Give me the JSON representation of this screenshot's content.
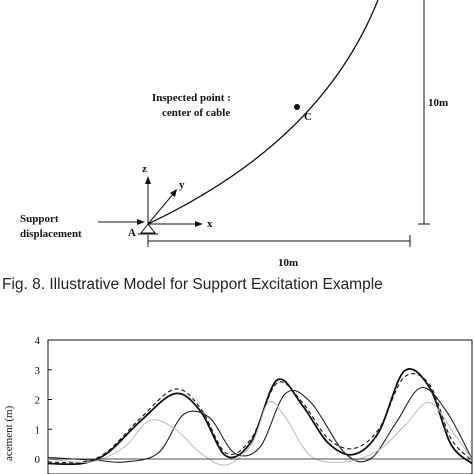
{
  "figure": {
    "label_inspected_line1": "Inspected point :",
    "label_inspected_line2": "center of cable",
    "label_point_c": "C",
    "label_point_a": "A",
    "label_support_line1": "Support",
    "label_support_line2": "displacement",
    "axis_z": "z",
    "axis_y": "y",
    "axis_x": "x",
    "dim_vertical": "10m",
    "dim_horizontal": "10m",
    "caption": "Fig. 8. Illustrative Model for Support Excitation Example"
  },
  "chart_data": {
    "type": "line",
    "ylabel": "acement (m)",
    "ylim": [
      0,
      4
    ],
    "yticks": [
      "4",
      "3",
      "2",
      "1",
      "0"
    ],
    "x_range": [
      0,
      1
    ],
    "series": [
      {
        "style": "solid-thick",
        "color": "#111111",
        "x": [
          0.0,
          0.08,
          0.14,
          0.22,
          0.3,
          0.36,
          0.42,
          0.48,
          0.54,
          0.6,
          0.66,
          0.72,
          0.78,
          0.84,
          0.9,
          0.95,
          1.0
        ],
        "y": [
          -0.15,
          -0.15,
          0.2,
          1.3,
          2.2,
          1.6,
          0.1,
          0.6,
          2.65,
          1.8,
          0.55,
          0.15,
          0.9,
          2.95,
          2.4,
          0.5,
          -0.15
        ]
      },
      {
        "style": "dashed",
        "color": "#111111",
        "x": [
          0.0,
          0.08,
          0.14,
          0.22,
          0.3,
          0.36,
          0.42,
          0.48,
          0.54,
          0.6,
          0.66,
          0.72,
          0.78,
          0.84,
          0.9,
          0.95,
          1.0
        ],
        "y": [
          -0.1,
          -0.1,
          0.25,
          1.4,
          2.35,
          1.7,
          0.2,
          0.7,
          2.55,
          1.9,
          0.7,
          0.35,
          1.0,
          2.75,
          2.5,
          0.7,
          -0.05
        ]
      },
      {
        "style": "solid-thin",
        "color": "#222222",
        "x": [
          0.0,
          0.06,
          0.12,
          0.18,
          0.26,
          0.32,
          0.38,
          0.44,
          0.5,
          0.56,
          0.62,
          0.7,
          0.76,
          0.82,
          0.88,
          0.94,
          1.0
        ],
        "y": [
          0.05,
          0.0,
          -0.05,
          -0.1,
          0.2,
          1.5,
          1.4,
          0.2,
          0.4,
          2.2,
          1.9,
          0.2,
          0.0,
          1.2,
          2.4,
          1.6,
          0.0
        ]
      },
      {
        "style": "solid-light",
        "color": "#bbbbbb",
        "x": [
          0.0,
          0.1,
          0.18,
          0.24,
          0.3,
          0.36,
          0.42,
          0.48,
          0.52,
          0.56,
          0.62,
          0.7,
          0.78,
          0.84,
          0.9,
          0.96,
          1.0
        ],
        "y": [
          0.0,
          -0.1,
          0.4,
          1.3,
          1.0,
          0.2,
          -0.2,
          0.5,
          1.9,
          1.4,
          0.1,
          -0.1,
          0.3,
          1.1,
          1.9,
          0.8,
          0.0
        ]
      }
    ]
  }
}
